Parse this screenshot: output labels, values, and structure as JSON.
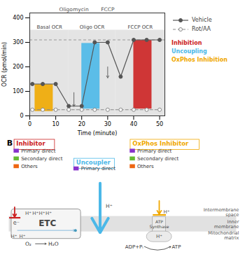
{
  "chart_data": [
    {
      "type": "line",
      "xlabel": "Time (minute)",
      "ylabel": "OCR (pmol/min)",
      "xlim": [
        0,
        52
      ],
      "ylim": [
        0,
        420
      ],
      "xticks": [
        0,
        10,
        20,
        30,
        40,
        50
      ],
      "yticks": [
        0,
        100,
        200,
        300,
        400
      ],
      "series": [
        {
          "name": "Vehicle",
          "color": "#555555",
          "marker": "circle",
          "line_style": "solid",
          "x": [
            1,
            5,
            10,
            15,
            20,
            25,
            30,
            35,
            40,
            45,
            50
          ],
          "values": [
            130,
            130,
            130,
            40,
            40,
            300,
            300,
            160,
            310,
            310,
            310
          ]
        },
        {
          "name": "Rot/AA",
          "color": "#888888",
          "marker": "open circle",
          "line_style": "dashed",
          "x": [
            1,
            5,
            10,
            15,
            20,
            25,
            30,
            35,
            40,
            45,
            50
          ],
          "values": [
            25,
            25,
            25,
            25,
            25,
            25,
            25,
            25,
            25,
            25,
            25
          ]
        }
      ],
      "bars": [
        {
          "x": 2,
          "width": 7,
          "bottom": 18,
          "value": 110,
          "color": "#F0A800"
        },
        {
          "x": 20,
          "width": 7,
          "bottom": 28,
          "value": 268,
          "color": "#4BB8E8"
        },
        {
          "x": 40,
          "width": 7,
          "bottom": 28,
          "value": 280,
          "color": "#CC2222"
        }
      ],
      "regions": [
        {
          "x": 0.2,
          "width": 14.8,
          "label": "Basal OCR"
        },
        {
          "x": 15.0,
          "width": 18.0,
          "label": "Oligo OCR"
        },
        {
          "x": 33.0,
          "width": 19.0,
          "label": "FCCP OCR"
        }
      ],
      "region_color": "#DDDDDD",
      "region_top": 350,
      "reference_line": 310,
      "arrows": [
        {
          "label": "Oligomycin",
          "x": 17,
          "y_from": 95,
          "y_to": 38
        },
        {
          "label": "FCCP",
          "x": 30,
          "y_from": 200,
          "y_to": 155
        }
      ],
      "color_legend": [
        {
          "label": "Inhibition",
          "color": "#CC2222"
        },
        {
          "label": "Uncoupling",
          "color": "#4BB8E8"
        },
        {
          "label": "OxPhos Inhibition",
          "color": "#F0A800"
        }
      ]
    },
    {
      "type": "diagram",
      "label": "B",
      "legends": [
        {
          "title": "Inhibitor",
          "color": "#CC2222",
          "items": [
            {
              "label": "Primary direct",
              "color": "#8833CC"
            },
            {
              "label": "Secondary direct",
              "color": "#66BB33"
            },
            {
              "label": "Others",
              "color": "#EE6611"
            }
          ]
        },
        {
          "title": "OxPhos Inhibitor",
          "color": "#F0A800",
          "items": [
            {
              "label": "Primary direct",
              "color": "#8833CC"
            },
            {
              "label": "Secondary direct",
              "color": "#66BB33"
            },
            {
              "label": "Others",
              "color": "#EE6611"
            }
          ]
        },
        {
          "title": "Uncoupler",
          "color": "#4BB8E8",
          "items": [
            {
              "label": "Primary direct",
              "color": "#8833CC"
            }
          ]
        }
      ],
      "etc_label": "ETC",
      "atp_label": "ATP\nSynthase",
      "membrane_color": "#C8C8C8",
      "proton_label": "H⁺",
      "electron_label": "e⁻",
      "oxygen_label": "O₂",
      "water_label": "H₂O",
      "substrate_label": "ADP+Pᵢ",
      "product_label": "ATP",
      "region_labels": [
        "Intermembrane\nspace",
        "Inner\nmembrane",
        "Mitochondrial\nmatrix"
      ]
    }
  ]
}
